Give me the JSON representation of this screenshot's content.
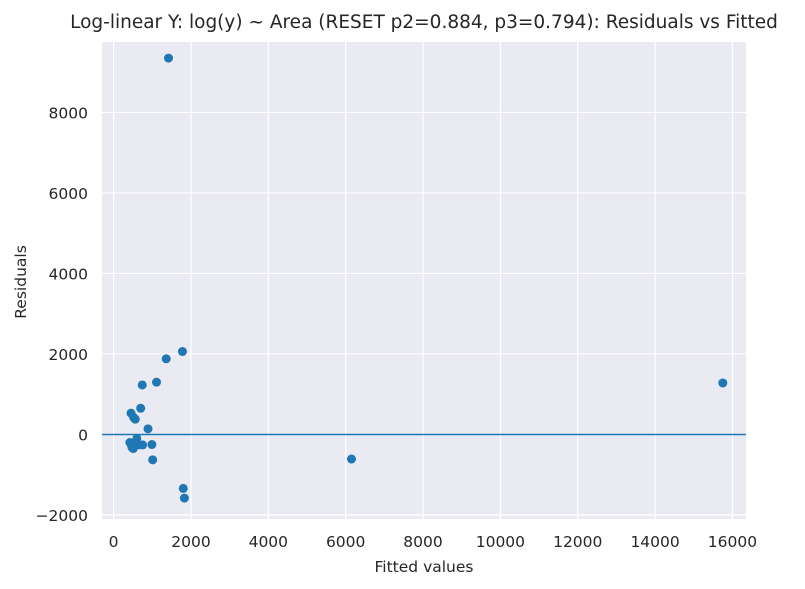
{
  "chart_data": {
    "type": "scatter",
    "title": "Log-linear Y: log(y) ~ Area (RESET p2=0.884, p3=0.794): Residuals vs Fitted",
    "xlabel": "Fitted values",
    "ylabel": "Residuals",
    "xlim": [
      -300,
      16350
    ],
    "ylim": [
      -2100,
      9750
    ],
    "xticks": [
      0,
      2000,
      4000,
      6000,
      8000,
      10000,
      12000,
      14000,
      16000
    ],
    "yticks": [
      -2000,
      0,
      2000,
      4000,
      6000,
      8000
    ],
    "xtick_labels": [
      "0",
      "2000",
      "4000",
      "6000",
      "8000",
      "10000",
      "12000",
      "14000",
      "16000"
    ],
    "ytick_labels": [
      "−2000",
      "0",
      "2000",
      "4000",
      "6000",
      "8000"
    ],
    "grid": true,
    "reference_line": {
      "y": 0,
      "color": "#1f77b4"
    },
    "colors": {
      "background": "#eaeaf2",
      "grid": "#ffffff",
      "point": "#1f77b4"
    },
    "points": [
      {
        "x": 1420,
        "y": 9350
      },
      {
        "x": 1780,
        "y": 2060
      },
      {
        "x": 1360,
        "y": 1880
      },
      {
        "x": 1110,
        "y": 1300
      },
      {
        "x": 740,
        "y": 1230
      },
      {
        "x": 15750,
        "y": 1280
      },
      {
        "x": 700,
        "y": 650
      },
      {
        "x": 450,
        "y": 530
      },
      {
        "x": 520,
        "y": 420
      },
      {
        "x": 560,
        "y": 380
      },
      {
        "x": 890,
        "y": 140
      },
      {
        "x": 600,
        "y": -100
      },
      {
        "x": 420,
        "y": -200
      },
      {
        "x": 530,
        "y": -230
      },
      {
        "x": 640,
        "y": -260
      },
      {
        "x": 990,
        "y": -250
      },
      {
        "x": 750,
        "y": -260
      },
      {
        "x": 470,
        "y": -300
      },
      {
        "x": 510,
        "y": -350
      },
      {
        "x": 480,
        "y": -330
      },
      {
        "x": 1010,
        "y": -630
      },
      {
        "x": 6150,
        "y": -610
      },
      {
        "x": 1800,
        "y": -1340
      },
      {
        "x": 1830,
        "y": -1580
      }
    ]
  }
}
